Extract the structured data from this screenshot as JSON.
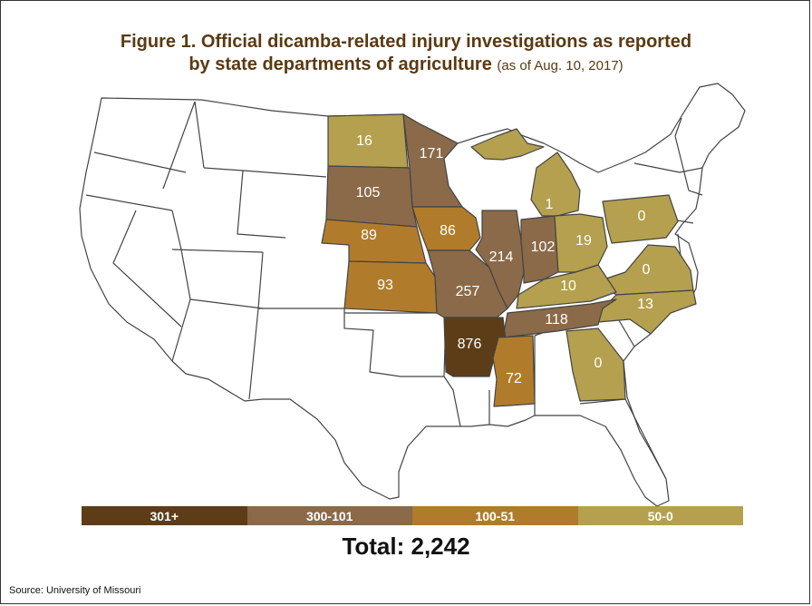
{
  "title": {
    "line1": "Figure 1. Official dicamba-related injury investigations as reported",
    "line2": "by state departments of agriculture",
    "line2_note": "(as of Aug. 10, 2017)"
  },
  "colors": {
    "tier_301_plus": "#5c3d17",
    "tier_300_101": "#8a6a48",
    "tier_100_51": "#b07c2c",
    "tier_50_0": "#b4a04e",
    "no_data": "#ffffff",
    "border": "#444444"
  },
  "states": [
    {
      "state": "North Dakota",
      "value": "16",
      "tier": "tier_50_0"
    },
    {
      "state": "Minnesota",
      "value": "171",
      "tier": "tier_300_101"
    },
    {
      "state": "South Dakota",
      "value": "105",
      "tier": "tier_300_101"
    },
    {
      "state": "Nebraska",
      "value": "89",
      "tier": "tier_100_51"
    },
    {
      "state": "Iowa",
      "value": "86",
      "tier": "tier_100_51"
    },
    {
      "state": "Kansas",
      "value": "93",
      "tier": "tier_100_51"
    },
    {
      "state": "Missouri",
      "value": "257",
      "tier": "tier_300_101"
    },
    {
      "state": "Illinois",
      "value": "214",
      "tier": "tier_300_101"
    },
    {
      "state": "Indiana",
      "value": "102",
      "tier": "tier_300_101"
    },
    {
      "state": "Michigan",
      "value": "1",
      "tier": "tier_50_0"
    },
    {
      "state": "Ohio",
      "value": "19",
      "tier": "tier_50_0"
    },
    {
      "state": "Pennsylvania",
      "value": "0",
      "tier": "tier_50_0"
    },
    {
      "state": "Virginia",
      "value": "0",
      "tier": "tier_50_0"
    },
    {
      "state": "Kentucky",
      "value": "10",
      "tier": "tier_50_0"
    },
    {
      "state": "North Carolina",
      "value": "13",
      "tier": "tier_50_0"
    },
    {
      "state": "Tennessee",
      "value": "118",
      "tier": "tier_300_101"
    },
    {
      "state": "Arkansas",
      "value": "876",
      "tier": "tier_301_plus"
    },
    {
      "state": "Mississippi",
      "value": "72",
      "tier": "tier_100_51"
    },
    {
      "state": "Georgia",
      "value": "0",
      "tier": "tier_50_0"
    }
  ],
  "legend": [
    {
      "label": "301+",
      "tier": "tier_301_plus"
    },
    {
      "label": "300-101",
      "tier": "tier_300_101"
    },
    {
      "label": "100-51",
      "tier": "tier_100_51"
    },
    {
      "label": "50-0",
      "tier": "tier_50_0"
    }
  ],
  "total": "Total: 2,242",
  "source": "Source: University of Missouri"
}
